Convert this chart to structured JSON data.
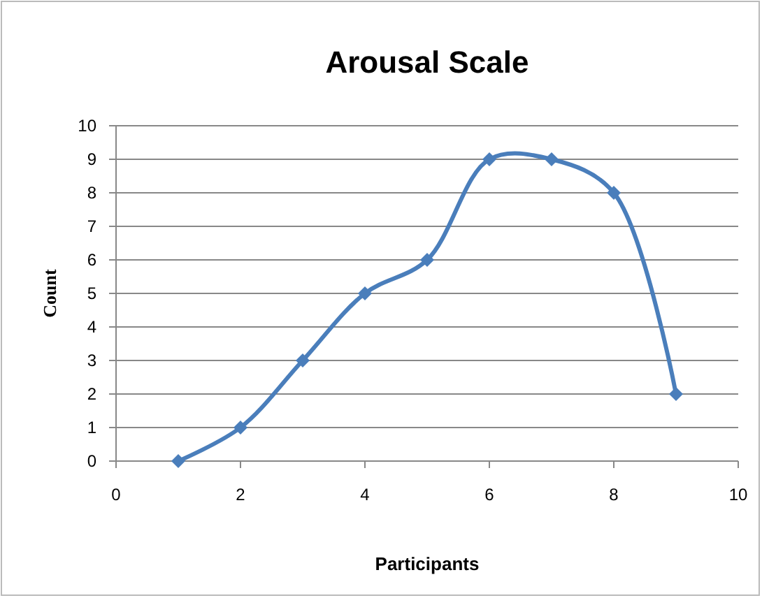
{
  "chart_data": {
    "type": "line",
    "title": "Arousal Scale",
    "xlabel": "Participants",
    "ylabel": "Count",
    "x": [
      1,
      2,
      3,
      4,
      5,
      6,
      7,
      8,
      9
    ],
    "series": [
      {
        "color": "#4a7ebb",
        "values": [
          0,
          1,
          3,
          5,
          6,
          9,
          9,
          8,
          2
        ]
      }
    ],
    "xlim": [
      0,
      10
    ],
    "xticks": [
      0,
      2,
      4,
      6,
      8,
      10
    ],
    "ylim": [
      0,
      10
    ],
    "yticks": [
      0,
      1,
      2,
      3,
      4,
      5,
      6,
      7,
      8,
      9,
      10
    ],
    "grid": "y",
    "marker": "diamond",
    "line_style": "solid"
  }
}
